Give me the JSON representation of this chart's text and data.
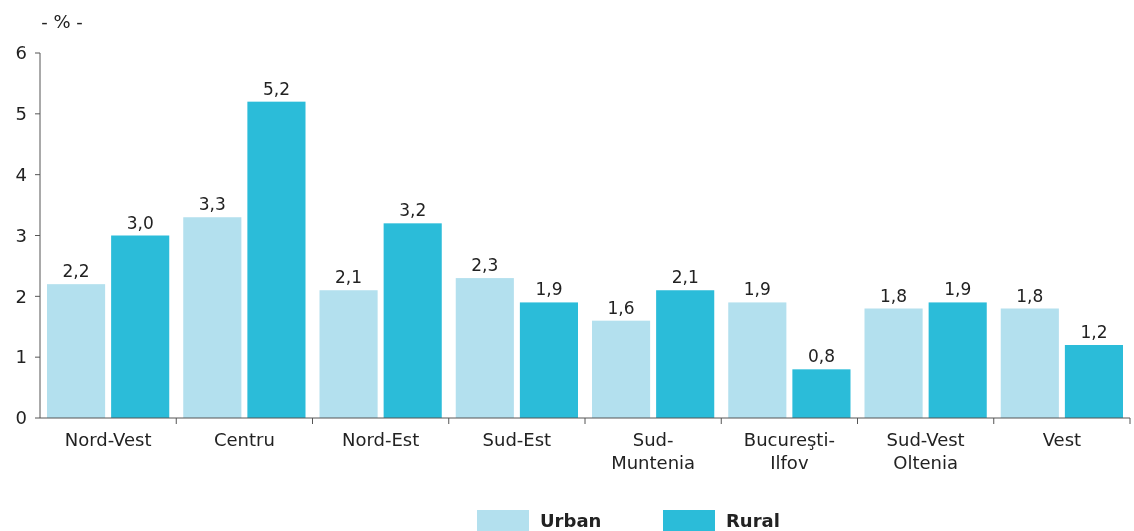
{
  "chart_data": {
    "type": "bar",
    "ylabel": "- % -",
    "categories": [
      "Nord-Vest",
      "Centru",
      "Nord-Est",
      "Sud-Est",
      "Sud-Muntenia",
      "Bucureşti-Ilfov",
      "Sud-Vest Oltenia",
      "Vest"
    ],
    "series": [
      {
        "name": "Urban",
        "color": "#b3e0ee",
        "values": [
          2.2,
          3.3,
          2.1,
          2.3,
          1.6,
          1.9,
          1.8,
          1.8
        ],
        "value_labels": [
          "2,2",
          "3,3",
          "2,1",
          "2,3",
          "1,6",
          "1,9",
          "1,8",
          "1,8"
        ]
      },
      {
        "name": "Rural",
        "color": "#2bbcd9",
        "values": [
          3.0,
          5.2,
          3.2,
          1.9,
          2.1,
          0.8,
          1.9,
          1.2
        ],
        "value_labels": [
          "3,0",
          "5,2",
          "3,2",
          "1,9",
          "2,1",
          "0,8",
          "1,9",
          "1,2"
        ]
      }
    ],
    "ylim": [
      0,
      6
    ],
    "yticks": [
      0,
      1,
      2,
      3,
      4,
      5,
      6
    ],
    "grid": false,
    "legend": "bottom"
  }
}
